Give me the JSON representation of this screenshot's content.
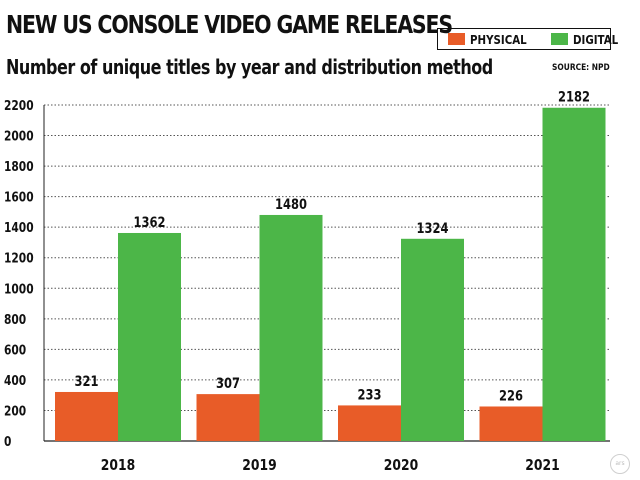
{
  "chart_data": {
    "type": "bar",
    "title": "NEW US CONSOLE VIDEO GAME RELEASES",
    "subtitle": "Number of unique titles by year and distribution method",
    "source": "SOURCE: NPD",
    "categories": [
      "2018",
      "2019",
      "2020",
      "2021"
    ],
    "series": [
      {
        "name": "PHYSICAL",
        "color": "#e85c28",
        "values": [
          321,
          307,
          233,
          226
        ]
      },
      {
        "name": "DIGITAL",
        "color": "#4cb648",
        "values": [
          1362,
          1480,
          1324,
          2182
        ]
      }
    ],
    "ylim": [
      0,
      2200
    ],
    "yticks": [
      0,
      200,
      400,
      600,
      800,
      1000,
      1200,
      1400,
      1600,
      1800,
      2000,
      2200
    ],
    "grid": "horizontal dotted",
    "legend": "top-right",
    "watermark": "ars"
  }
}
